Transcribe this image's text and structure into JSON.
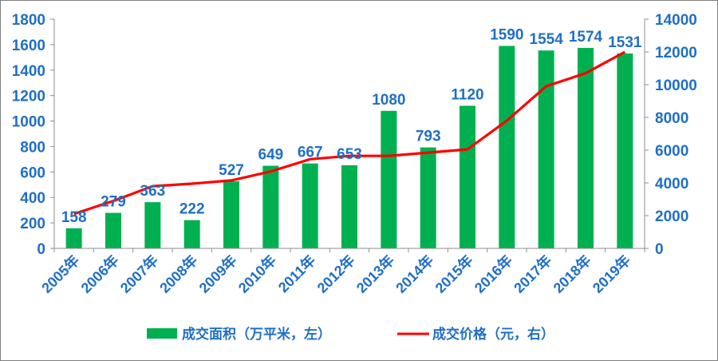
{
  "chart_data": {
    "type": "bar",
    "categories": [
      "2005年",
      "2006年",
      "2007年",
      "2008年",
      "2009年",
      "2010年",
      "2011年",
      "2012年",
      "2013年",
      "2014年",
      "2015年",
      "2016年",
      "2017年",
      "2018年",
      "2019年"
    ],
    "series": [
      {
        "name": "成交面积（万平米，左）",
        "type": "bar",
        "axis": "left",
        "color": "#00b050",
        "values": [
          158,
          279,
          363,
          222,
          527,
          649,
          667,
          653,
          1080,
          793,
          1120,
          1590,
          1554,
          1574,
          1531
        ],
        "data_labels": [
          "158",
          "279",
          "363",
          "222",
          "527",
          "649",
          "667",
          "653",
          "1080",
          "793",
          "1120",
          "1590",
          "1554",
          "1574",
          "1531"
        ]
      },
      {
        "name": "成交价格（元，右）",
        "type": "line",
        "axis": "right",
        "color": "#ff0000",
        "values": [
          2100,
          2900,
          3800,
          3950,
          4150,
          4700,
          5450,
          5650,
          5650,
          5850,
          6050,
          7800,
          9900,
          10700,
          12000
        ]
      }
    ],
    "left_axis": {
      "ylim": [
        0,
        1800
      ],
      "ticks": [
        "0",
        "200",
        "400",
        "600",
        "800",
        "1000",
        "1200",
        "1400",
        "1600",
        "1800"
      ]
    },
    "right_axis": {
      "ylim": [
        0,
        14000
      ],
      "ticks": [
        "0",
        "2000",
        "4000",
        "6000",
        "8000",
        "10000",
        "12000",
        "14000"
      ]
    },
    "grid": false,
    "legend_position": "bottom",
    "text_color": "#1f6fc5"
  }
}
